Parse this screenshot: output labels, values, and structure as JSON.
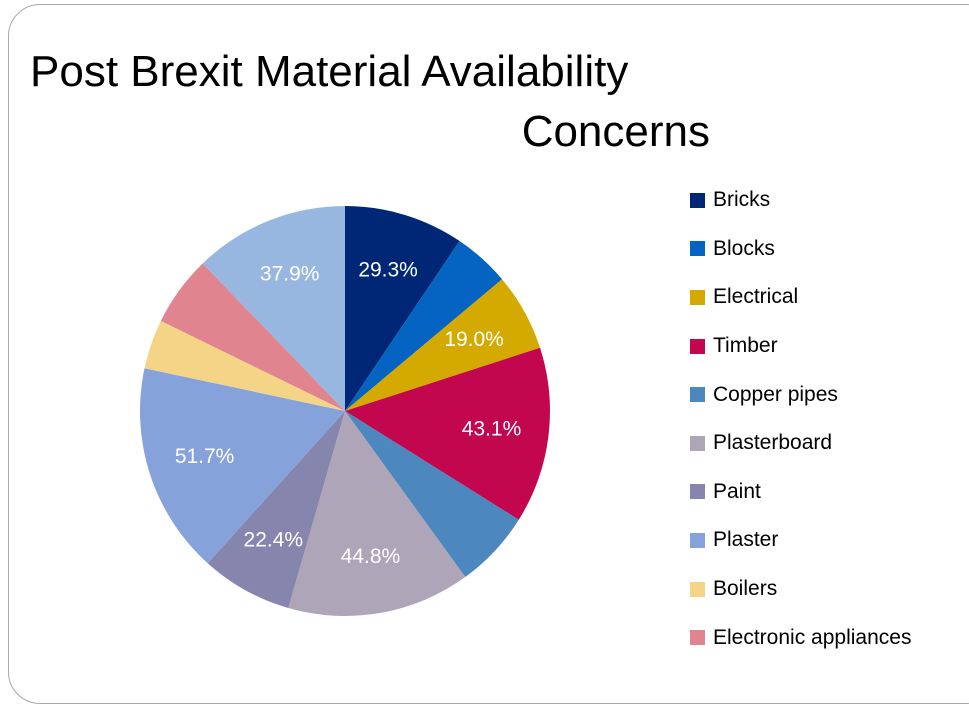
{
  "chart_data": {
    "type": "pie",
    "title": "Post Brexit Material Availability Concerns",
    "title_lines": [
      "Post Brexit Material Availability",
      "Concerns"
    ],
    "legend_position": "right",
    "slices": [
      {
        "label": "Bricks",
        "value": 29.3,
        "value_label": "29.3%",
        "color": "#002776"
      },
      {
        "label": "Blocks",
        "value": 13.8,
        "value_label": "",
        "color": "#0563c1"
      },
      {
        "label": "Electrical",
        "value": 19.0,
        "value_label": "19.0%",
        "color": "#d4aa00"
      },
      {
        "label": "Timber",
        "value": 43.1,
        "value_label": "43.1%",
        "color": "#c2074f"
      },
      {
        "label": "Copper pipes",
        "value": 19.0,
        "value_label": "",
        "color": "#4c87bd"
      },
      {
        "label": "Plasterboard",
        "value": 44.8,
        "value_label": "44.8%",
        "color": "#aea5b9"
      },
      {
        "label": "Paint",
        "value": 22.4,
        "value_label": "22.4%",
        "color": "#8585ad"
      },
      {
        "label": "Plaster",
        "value": 51.7,
        "value_label": "51.7%",
        "color": "#85a2db"
      },
      {
        "label": "Boilers",
        "value": 12.1,
        "value_label": "",
        "color": "#f4d587"
      },
      {
        "label": "Electronic appliances",
        "value": 17.2,
        "value_label": "",
        "color": "#e08490"
      },
      {
        "label": "",
        "value": 37.9,
        "value_label": "37.9%",
        "color": "#98b7e0"
      }
    ]
  }
}
